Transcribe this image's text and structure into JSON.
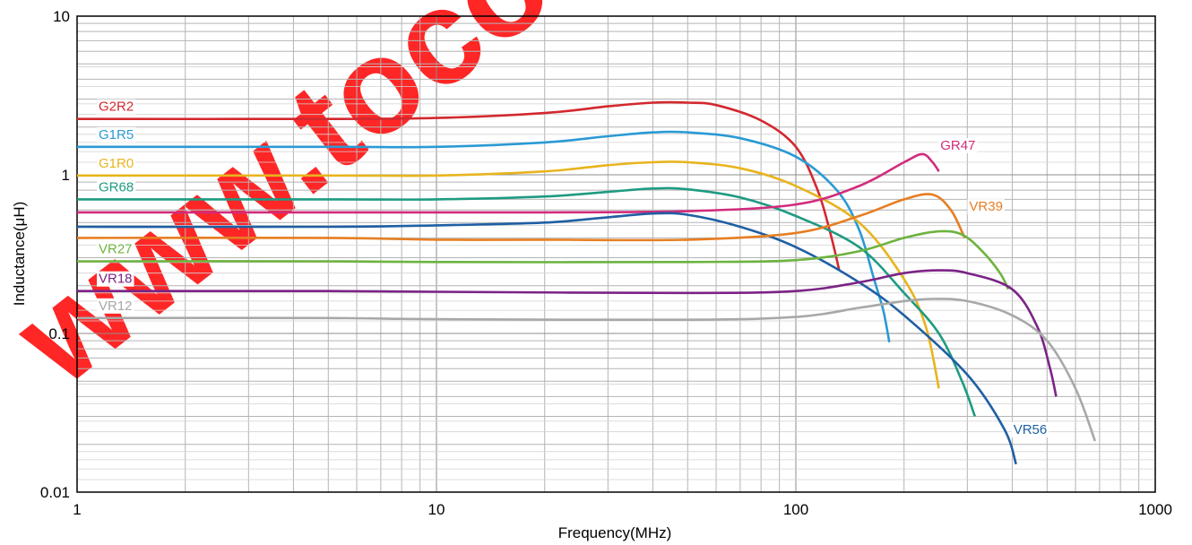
{
  "chart_data": {
    "type": "line",
    "xscale": "log",
    "yscale": "log",
    "xlabel": "Frequency(MHz)",
    "ylabel": "Inductance(μH)",
    "xlim": [
      1,
      1000
    ],
    "ylim": [
      0.01,
      10
    ],
    "grid": true,
    "x_ticks": [
      1,
      10,
      100,
      1000
    ],
    "x_tick_labels": [
      "1",
      "10",
      "100",
      "1000"
    ],
    "y_ticks": [
      0.01,
      0.1,
      1,
      10
    ],
    "y_tick_labels": [
      "0.01",
      "0.1",
      "1",
      "10"
    ],
    "series": [
      {
        "name": "G2R2",
        "color": "#d3282e",
        "label_pos": "left",
        "points": [
          [
            1,
            2.25
          ],
          [
            5,
            2.25
          ],
          [
            10,
            2.28
          ],
          [
            20,
            2.45
          ],
          [
            30,
            2.7
          ],
          [
            40,
            2.85
          ],
          [
            50,
            2.85
          ],
          [
            60,
            2.75
          ],
          [
            80,
            2.2
          ],
          [
            100,
            1.5
          ],
          [
            115,
            0.8
          ],
          [
            125,
            0.42
          ],
          [
            132,
            0.25
          ]
        ]
      },
      {
        "name": "G1R5",
        "color": "#2a9ad4",
        "label_pos": "left",
        "points": [
          [
            1,
            1.5
          ],
          [
            5,
            1.5
          ],
          [
            10,
            1.5
          ],
          [
            20,
            1.6
          ],
          [
            30,
            1.75
          ],
          [
            40,
            1.85
          ],
          [
            50,
            1.85
          ],
          [
            70,
            1.7
          ],
          [
            100,
            1.3
          ],
          [
            130,
            0.8
          ],
          [
            150,
            0.45
          ],
          [
            165,
            0.22
          ],
          [
            175,
            0.14
          ],
          [
            182,
            0.088
          ]
        ]
      },
      {
        "name": "G1R0",
        "color": "#e8b41e",
        "label_pos": "left",
        "points": [
          [
            1,
            0.99
          ],
          [
            5,
            0.99
          ],
          [
            10,
            0.99
          ],
          [
            20,
            1.05
          ],
          [
            30,
            1.15
          ],
          [
            40,
            1.2
          ],
          [
            50,
            1.2
          ],
          [
            70,
            1.1
          ],
          [
            100,
            0.85
          ],
          [
            150,
            0.5
          ],
          [
            200,
            0.22
          ],
          [
            230,
            0.11
          ],
          [
            250,
            0.045
          ]
        ]
      },
      {
        "name": "GR68",
        "color": "#1e9b82",
        "label_pos": "left",
        "points": [
          [
            1,
            0.7
          ],
          [
            5,
            0.7
          ],
          [
            10,
            0.7
          ],
          [
            20,
            0.73
          ],
          [
            30,
            0.78
          ],
          [
            40,
            0.82
          ],
          [
            50,
            0.81
          ],
          [
            70,
            0.72
          ],
          [
            100,
            0.55
          ],
          [
            150,
            0.35
          ],
          [
            200,
            0.18
          ],
          [
            250,
            0.1
          ],
          [
            290,
            0.05
          ],
          [
            315,
            0.03
          ]
        ]
      },
      {
        "name": "GR47",
        "color": "#d12b7c",
        "label_pos": "right",
        "points": [
          [
            1,
            0.58
          ],
          [
            5,
            0.58
          ],
          [
            10,
            0.58
          ],
          [
            20,
            0.58
          ],
          [
            50,
            0.59
          ],
          [
            100,
            0.65
          ],
          [
            150,
            0.85
          ],
          [
            200,
            1.2
          ],
          [
            225,
            1.35
          ],
          [
            240,
            1.2
          ],
          [
            250,
            1.05
          ]
        ]
      },
      {
        "name": "VR56",
        "color": "#1f5fa3",
        "label_pos": "right",
        "points": [
          [
            1,
            0.47
          ],
          [
            5,
            0.47
          ],
          [
            10,
            0.48
          ],
          [
            20,
            0.5
          ],
          [
            30,
            0.54
          ],
          [
            40,
            0.57
          ],
          [
            50,
            0.56
          ],
          [
            70,
            0.47
          ],
          [
            100,
            0.35
          ],
          [
            150,
            0.21
          ],
          [
            200,
            0.13
          ],
          [
            300,
            0.055
          ],
          [
            380,
            0.025
          ],
          [
            410,
            0.015
          ]
        ]
      },
      {
        "name": "VR39",
        "color": "#e67e22",
        "label_pos": "right",
        "points": [
          [
            1,
            0.4
          ],
          [
            5,
            0.4
          ],
          [
            10,
            0.39
          ],
          [
            20,
            0.39
          ],
          [
            50,
            0.39
          ],
          [
            100,
            0.43
          ],
          [
            150,
            0.55
          ],
          [
            200,
            0.7
          ],
          [
            240,
            0.75
          ],
          [
            270,
            0.6
          ],
          [
            295,
            0.4
          ]
        ]
      },
      {
        "name": "VR27",
        "color": "#6db33f",
        "label_pos": "left",
        "points": [
          [
            1,
            0.285
          ],
          [
            5,
            0.285
          ],
          [
            10,
            0.282
          ],
          [
            50,
            0.282
          ],
          [
            100,
            0.29
          ],
          [
            150,
            0.33
          ],
          [
            200,
            0.4
          ],
          [
            250,
            0.44
          ],
          [
            290,
            0.42
          ],
          [
            330,
            0.33
          ],
          [
            370,
            0.24
          ],
          [
            390,
            0.19
          ]
        ]
      },
      {
        "name": "VR18",
        "color": "#7b2386",
        "label_pos": "left",
        "points": [
          [
            1,
            0.185
          ],
          [
            5,
            0.185
          ],
          [
            10,
            0.183
          ],
          [
            50,
            0.18
          ],
          [
            100,
            0.185
          ],
          [
            150,
            0.21
          ],
          [
            200,
            0.24
          ],
          [
            250,
            0.25
          ],
          [
            300,
            0.24
          ],
          [
            400,
            0.19
          ],
          [
            470,
            0.11
          ],
          [
            510,
            0.06
          ],
          [
            530,
            0.04
          ]
        ]
      },
      {
        "name": "VR12",
        "color": "#a8a8a8",
        "label_pos": "left",
        "points": [
          [
            1,
            0.125
          ],
          [
            5,
            0.125
          ],
          [
            10,
            0.123
          ],
          [
            50,
            0.122
          ],
          [
            100,
            0.127
          ],
          [
            150,
            0.145
          ],
          [
            200,
            0.16
          ],
          [
            240,
            0.165
          ],
          [
            300,
            0.16
          ],
          [
            400,
            0.13
          ],
          [
            500,
            0.09
          ],
          [
            600,
            0.045
          ],
          [
            680,
            0.021
          ]
        ]
      }
    ]
  },
  "watermark": {
    "text": "www.tocoso",
    "color": "#ff0000"
  }
}
